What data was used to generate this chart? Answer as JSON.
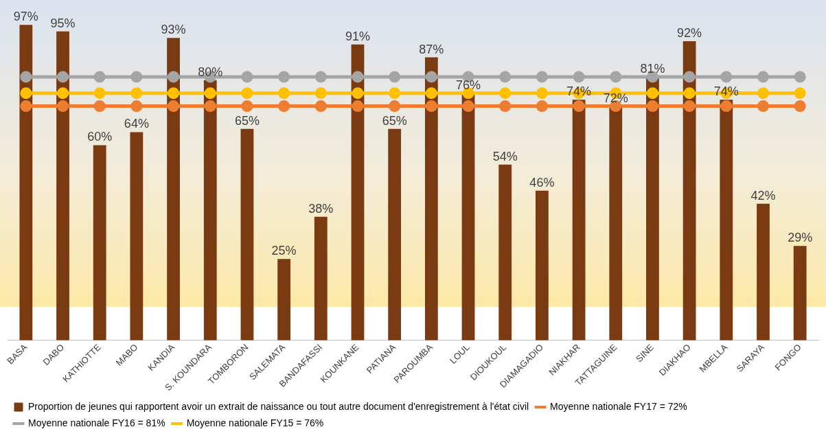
{
  "chart_data": {
    "type": "bar",
    "categories": [
      "BASA",
      "DABO",
      "KATHIOTTE",
      "MABO",
      "KANDIA",
      "S. KOUNDARA",
      "TOMBORON",
      "SALEMATA",
      "BANDAFASSI",
      "KOUNKANE",
      "PATIANA",
      "PAROUMBA",
      "LOUL",
      "DIOUKOUL",
      "DIAMAGADIO",
      "NIAKHAR",
      "TATTAGUINE",
      "SINE",
      "DIAKHAO",
      "MBELLA",
      "SARAYA",
      "FONGO"
    ],
    "series": [
      {
        "name": "Proportion de jeunes qui rapportent avoir un extrait de naissance ou tout autre document d'enregistrement à l'état civil",
        "color": "#7a3b12",
        "values": [
          97,
          95,
          60,
          64,
          93,
          80,
          65,
          25,
          38,
          91,
          65,
          87,
          76,
          54,
          46,
          74,
          72,
          81,
          92,
          74,
          42,
          29
        ],
        "value_labels": [
          "97%",
          "95%",
          "60%",
          "64%",
          "93%",
          "80%",
          "65%",
          "25%",
          "38%",
          "91%",
          "65%",
          "87%",
          "76%",
          "54%",
          "46%",
          "74%",
          "72%",
          "81%",
          "92%",
          "74%",
          "42%",
          "29%"
        ]
      },
      {
        "type": "line",
        "name": "Moyenne nationale FY17 = 72%",
        "color": "#ed7d31",
        "values": [
          72,
          72,
          72,
          72,
          72,
          72,
          72,
          72,
          72,
          72,
          72,
          72,
          72,
          72,
          72,
          72,
          72,
          72,
          72,
          72,
          72,
          72
        ]
      },
      {
        "type": "line",
        "name": "Moyenne nationale FY16 = 81%",
        "color": "#a5a5a5",
        "values": [
          81,
          81,
          81,
          81,
          81,
          81,
          81,
          81,
          81,
          81,
          81,
          81,
          81,
          81,
          81,
          81,
          81,
          81,
          81,
          81,
          81,
          81
        ]
      },
      {
        "type": "line",
        "name": "Moyenne nationale FY15 = 76%",
        "color": "#ffc000",
        "values": [
          76,
          76,
          76,
          76,
          76,
          76,
          76,
          76,
          76,
          76,
          76,
          76,
          76,
          76,
          76,
          76,
          76,
          76,
          76,
          76,
          76,
          76
        ]
      }
    ],
    "tick_labels": "x",
    "grid": false,
    "legend": "bottom",
    "marker": "circle",
    "line_style": "solid"
  }
}
